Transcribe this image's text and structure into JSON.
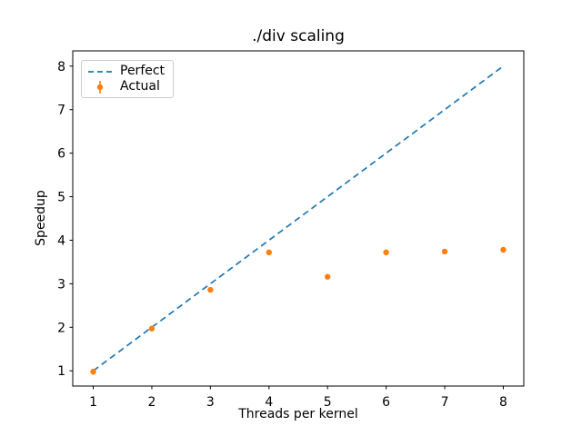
{
  "window": {
    "background": "#ffffff",
    "text_color": "#000000"
  },
  "chart_data": {
    "type": "line+errorbar-scatter",
    "title": "./div scaling",
    "xlabel": "Threads per kernel",
    "ylabel": "Speedup",
    "xlim": [
      0.65,
      8.35
    ],
    "ylim": [
      0.65,
      8.35
    ],
    "xticks": [
      1,
      2,
      3,
      4,
      5,
      6,
      7,
      8
    ],
    "yticks": [
      1,
      2,
      3,
      4,
      5,
      6,
      7,
      8
    ],
    "grid": false,
    "axes_color": "#000000",
    "legend": {
      "position": "upper-left",
      "border_color": "#cccccc",
      "background": "rgba(255,255,255,0.8)"
    },
    "series": [
      {
        "name": "Perfect",
        "type": "line",
        "linestyle": "dashed",
        "color": "#1f77b4",
        "x": [
          1,
          8
        ],
        "y": [
          1,
          8
        ]
      },
      {
        "name": "Actual",
        "type": "errorbar",
        "marker": "point",
        "color": "#ff7f0e",
        "x": [
          1,
          2,
          3,
          4,
          5,
          6,
          7,
          8
        ],
        "y": [
          0.98,
          1.97,
          2.86,
          3.72,
          3.16,
          3.72,
          3.74,
          3.78
        ],
        "yerr": [
          0.07,
          0.03,
          0.04,
          0.03,
          0.02,
          0.02,
          0.02,
          0.03
        ]
      }
    ]
  }
}
